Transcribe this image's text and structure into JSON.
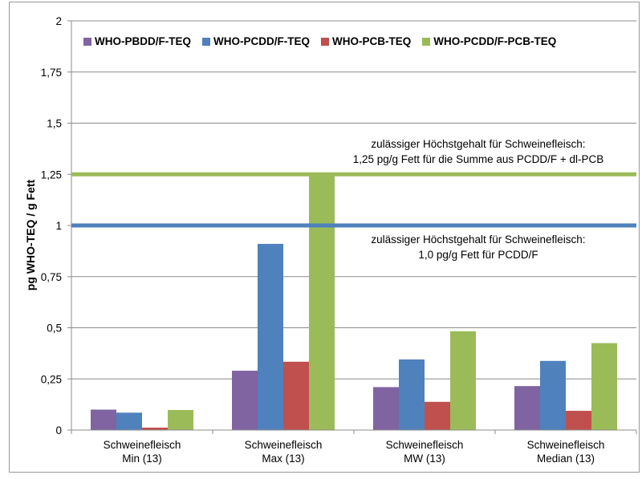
{
  "chart_data": {
    "type": "bar",
    "title": "",
    "xlabel": "",
    "ylabel": "pg WHO-TEQ / g Fett",
    "ylim": [
      0,
      2
    ],
    "yticks": [
      "0",
      "0,25",
      "0,5",
      "0,75",
      "1",
      "1,25",
      "1,5",
      "1,75",
      "2"
    ],
    "ytick_values": [
      0,
      0.25,
      0.5,
      0.75,
      1,
      1.25,
      1.5,
      1.75,
      2
    ],
    "grid": true,
    "legend_position": "top",
    "categories": [
      [
        "Schweinefleisch",
        "Min (13)"
      ],
      [
        "Schweinefleisch",
        "Max (13)"
      ],
      [
        "Schweinefleisch",
        "MW (13)"
      ],
      [
        "Schweinefleisch",
        "Median (13)"
      ]
    ],
    "series": [
      {
        "name": "WHO-PBDD/F-TEQ",
        "color": "#8064a2",
        "values": [
          0.1,
          0.29,
          0.21,
          0.215
        ]
      },
      {
        "name": "WHO-PCDD/F-TEQ",
        "color": "#4f81bd",
        "values": [
          0.085,
          0.91,
          0.345,
          0.338
        ]
      },
      {
        "name": "WHO-PCB-TEQ",
        "color": "#c0504d",
        "values": [
          0.012,
          0.334,
          0.138,
          0.094
        ]
      },
      {
        "name": "WHO-PCDD/F-PCB-TEQ",
        "color": "#9bbb59",
        "values": [
          0.098,
          1.25,
          0.483,
          0.425
        ]
      }
    ],
    "reference_lines": [
      {
        "value": 1.25,
        "color": "#9bbb59",
        "label": [
          "zulässiger Höchstgehalt für Schweinefleisch:",
          "1,25 pg/g Fett für die Summe aus PCDD/F + dl-PCB"
        ]
      },
      {
        "value": 1.0,
        "color": "#4f81bd",
        "label": [
          "zulässiger Höchstgehalt für Schweinefleisch:",
          "1,0 pg/g Fett für PCDD/F"
        ]
      }
    ]
  }
}
